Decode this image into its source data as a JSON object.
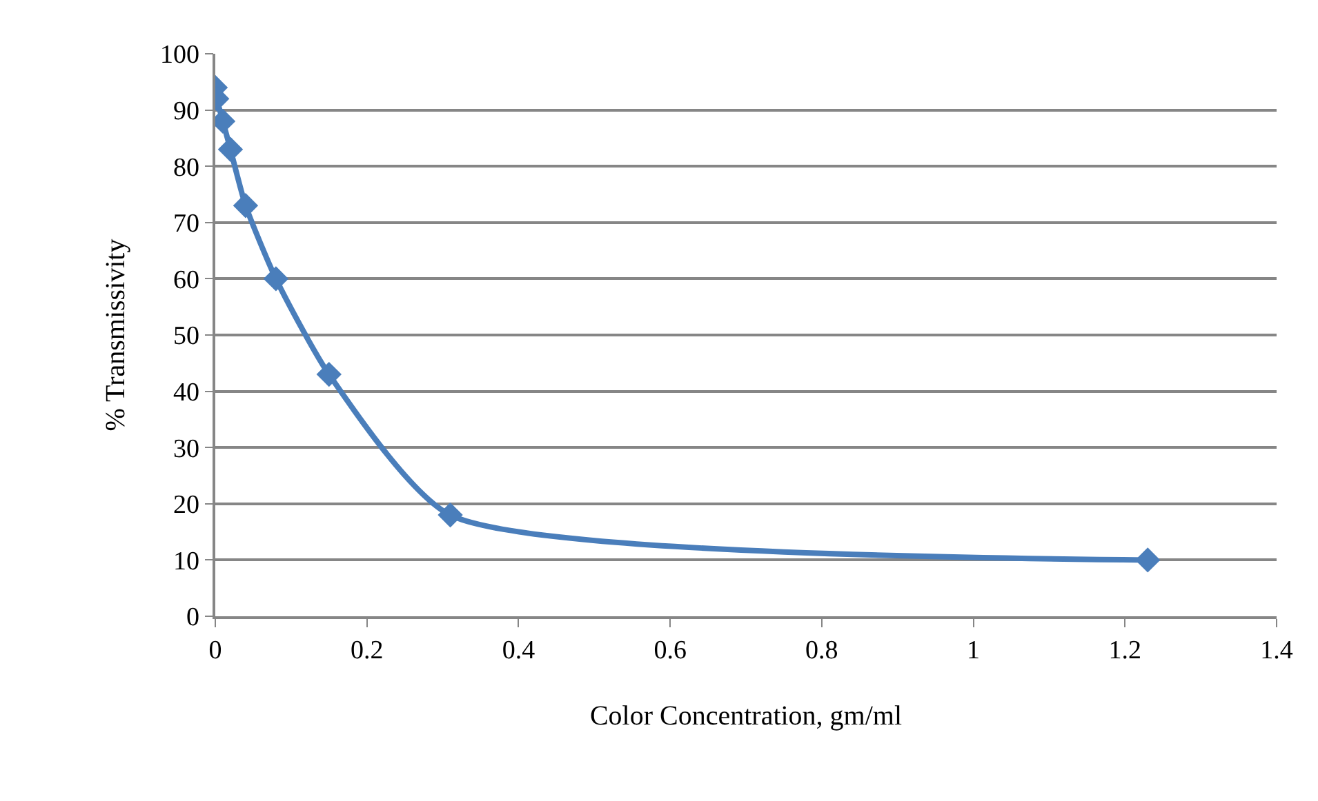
{
  "chart_data": {
    "type": "line",
    "xlabel": "Color Concentration, gm/ml",
    "ylabel": "% Transmissivity",
    "x": [
      0,
      0.002,
      0.01,
      0.02,
      0.04,
      0.08,
      0.15,
      0.31,
      1.23
    ],
    "series": [
      {
        "color": "#4a7ebb",
        "values": [
          94,
          92,
          88,
          83,
          73,
          60,
          43,
          18,
          10
        ]
      }
    ],
    "xlim": [
      0,
      1.4
    ],
    "xticks": [
      0,
      0.2,
      0.4,
      0.6,
      0.8,
      1,
      1.2,
      1.4
    ],
    "ylim": [
      0,
      100
    ],
    "yticks": [
      0,
      10,
      20,
      30,
      40,
      50,
      60,
      70,
      80,
      90,
      100
    ],
    "grid": "y",
    "marker": "diamond",
    "line_style": "solid",
    "legend": false
  }
}
